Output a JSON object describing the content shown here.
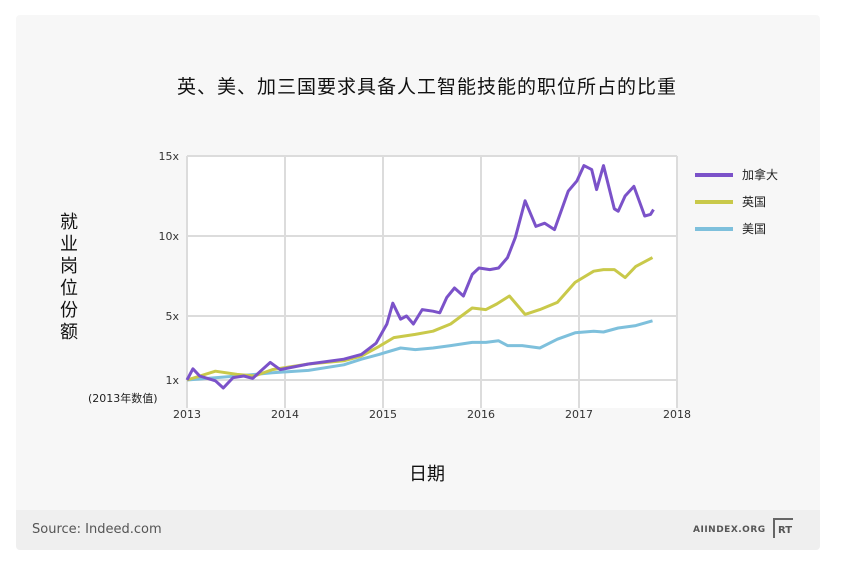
{
  "footer": {
    "source": "Source: Indeed.com",
    "brand": "AIINDEX.ORG",
    "logo_text": "RT"
  },
  "chart_data": {
    "type": "line",
    "title": "英、美、加三国要求具备人工智能技能的职位所占的比重",
    "xlabel": "日期",
    "ylabel": "就业岗位份额",
    "ylabel_note": "(2013年数值)",
    "xlim": [
      2013,
      2018
    ],
    "ylim": [
      0,
      15
    ],
    "xticks": [
      2013,
      2014,
      2015,
      2016,
      2017,
      2018
    ],
    "xtick_labels": [
      "2013",
      "2014",
      "2015",
      "2016",
      "2017",
      "2018"
    ],
    "yticks": [
      1,
      5,
      10,
      15
    ],
    "ytick_labels": [
      "1x",
      "5x",
      "10x",
      "15x"
    ],
    "grid": true,
    "legend_position": "right",
    "series": [
      {
        "name": "加拿大",
        "color": "#7b52c9",
        "points": [
          [
            2013,
            1.0
          ],
          [
            2013.06,
            1.7
          ],
          [
            2013.13,
            1.25
          ],
          [
            2013.29,
            0.95
          ],
          [
            2013.37,
            0.5
          ],
          [
            2013.47,
            1.15
          ],
          [
            2013.58,
            1.25
          ],
          [
            2013.67,
            1.1
          ],
          [
            2013.75,
            1.55
          ],
          [
            2013.85,
            2.1
          ],
          [
            2013.95,
            1.65
          ],
          [
            2014.24,
            2.0
          ],
          [
            2014.6,
            2.3
          ],
          [
            2014.78,
            2.6
          ],
          [
            2014.93,
            3.3
          ],
          [
            2015.04,
            4.5
          ],
          [
            2015.1,
            5.8
          ],
          [
            2015.18,
            4.8
          ],
          [
            2015.24,
            5.0
          ],
          [
            2015.31,
            4.5
          ],
          [
            2015.4,
            5.4
          ],
          [
            2015.51,
            5.3
          ],
          [
            2015.58,
            5.2
          ],
          [
            2015.65,
            6.15
          ],
          [
            2015.73,
            6.75
          ],
          [
            2015.82,
            6.25
          ],
          [
            2015.91,
            7.6
          ],
          [
            2015.98,
            8.0
          ],
          [
            2016.09,
            7.9
          ],
          [
            2016.18,
            8.0
          ],
          [
            2016.27,
            8.65
          ],
          [
            2016.35,
            9.9
          ],
          [
            2016.45,
            12.2
          ],
          [
            2016.56,
            10.6
          ],
          [
            2016.65,
            10.8
          ],
          [
            2016.75,
            10.4
          ],
          [
            2016.89,
            12.8
          ],
          [
            2016.98,
            13.45
          ],
          [
            2017.05,
            14.4
          ],
          [
            2017.13,
            14.15
          ],
          [
            2017.18,
            12.9
          ],
          [
            2017.25,
            14.4
          ],
          [
            2017.36,
            11.7
          ],
          [
            2017.4,
            11.55
          ],
          [
            2017.47,
            12.5
          ],
          [
            2017.56,
            13.1
          ],
          [
            2017.67,
            11.25
          ],
          [
            2017.73,
            11.35
          ],
          [
            2017.76,
            11.65
          ]
        ]
      },
      {
        "name": "英国",
        "color": "#c9c94a",
        "points": [
          [
            2013,
            1.0
          ],
          [
            2013.29,
            1.55
          ],
          [
            2013.51,
            1.35
          ],
          [
            2013.69,
            1.25
          ],
          [
            2013.87,
            1.65
          ],
          [
            2014.24,
            2.0
          ],
          [
            2014.6,
            2.2
          ],
          [
            2014.78,
            2.5
          ],
          [
            2014.96,
            3.1
          ],
          [
            2015.11,
            3.65
          ],
          [
            2015.33,
            3.85
          ],
          [
            2015.51,
            4.05
          ],
          [
            2015.69,
            4.5
          ],
          [
            2015.91,
            5.5
          ],
          [
            2016.05,
            5.4
          ],
          [
            2016.16,
            5.75
          ],
          [
            2016.29,
            6.25
          ],
          [
            2016.45,
            5.1
          ],
          [
            2016.6,
            5.4
          ],
          [
            2016.78,
            5.85
          ],
          [
            2016.96,
            7.1
          ],
          [
            2017.15,
            7.8
          ],
          [
            2017.25,
            7.9
          ],
          [
            2017.36,
            7.9
          ],
          [
            2017.47,
            7.4
          ],
          [
            2017.58,
            8.1
          ],
          [
            2017.75,
            8.65
          ]
        ]
      },
      {
        "name": "美国",
        "color": "#7ec0dc",
        "points": [
          [
            2013,
            1.0
          ],
          [
            2013.51,
            1.25
          ],
          [
            2013.87,
            1.45
          ],
          [
            2014.24,
            1.6
          ],
          [
            2014.6,
            1.95
          ],
          [
            2014.78,
            2.3
          ],
          [
            2014.96,
            2.6
          ],
          [
            2015.18,
            3.0
          ],
          [
            2015.33,
            2.9
          ],
          [
            2015.51,
            3.0
          ],
          [
            2015.69,
            3.15
          ],
          [
            2015.91,
            3.35
          ],
          [
            2016.05,
            3.35
          ],
          [
            2016.18,
            3.45
          ],
          [
            2016.27,
            3.15
          ],
          [
            2016.42,
            3.15
          ],
          [
            2016.6,
            3.0
          ],
          [
            2016.78,
            3.55
          ],
          [
            2016.96,
            3.95
          ],
          [
            2017.15,
            4.05
          ],
          [
            2017.25,
            4.0
          ],
          [
            2017.4,
            4.25
          ],
          [
            2017.58,
            4.4
          ],
          [
            2017.75,
            4.7
          ]
        ]
      }
    ]
  }
}
